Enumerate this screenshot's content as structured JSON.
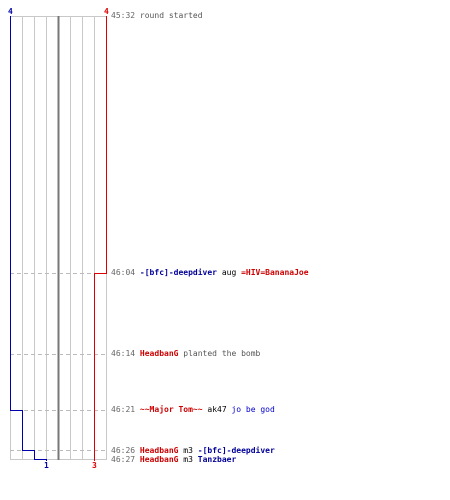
{
  "header": {
    "blue_count": "4",
    "red_count": "4"
  },
  "footer": {
    "blue_count": "1",
    "red_count": "3"
  },
  "colors": {
    "blue_team": "#0000aa",
    "red_team": "#dd0000",
    "grid": "#c8c8c8",
    "time": "#666666"
  },
  "events": [
    {
      "time": "45:32",
      "parts": {
        "text": "round started"
      }
    },
    {
      "time": "46:04",
      "parts": {
        "killer": "-[bfc]-deepdiver",
        "weapon": "aug",
        "victim": "=HIV=BananaJoe"
      }
    },
    {
      "time": "46:14",
      "parts": {
        "player": "HeadbanG",
        "action": "planted the bomb"
      }
    },
    {
      "time": "46:21",
      "parts": {
        "killer": "~~Major Tom~~",
        "weapon": "ak47",
        "victim": "jo be god"
      }
    },
    {
      "time": "46:26",
      "parts": {
        "killer": "HeadbanG",
        "weapon": "m3",
        "victim": "-[bfc]-deepdiver"
      }
    },
    {
      "time": "46:27",
      "parts": {
        "killer": "HeadbanG",
        "weapon": "m3",
        "victim": "Tanzbaer"
      }
    }
  ]
}
